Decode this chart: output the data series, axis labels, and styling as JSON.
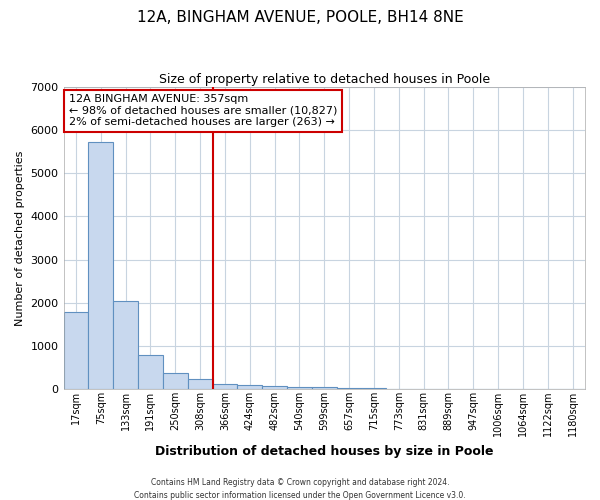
{
  "title1": "12A, BINGHAM AVENUE, POOLE, BH14 8NE",
  "title2": "Size of property relative to detached houses in Poole",
  "xlabel": "Distribution of detached houses by size in Poole",
  "ylabel": "Number of detached properties",
  "categories": [
    "17sqm",
    "75sqm",
    "133sqm",
    "191sqm",
    "250sqm",
    "308sqm",
    "366sqm",
    "424sqm",
    "482sqm",
    "540sqm",
    "599sqm",
    "657sqm",
    "715sqm",
    "773sqm",
    "831sqm",
    "889sqm",
    "947sqm",
    "1006sqm",
    "1064sqm",
    "1122sqm",
    "1180sqm"
  ],
  "values": [
    1790,
    5720,
    2050,
    800,
    370,
    240,
    130,
    100,
    75,
    55,
    45,
    35,
    30,
    0,
    0,
    0,
    0,
    0,
    0,
    0,
    0
  ],
  "bar_color": "#c8d8ee",
  "bar_edge_color": "#6090c0",
  "vline_x_index": 6,
  "vline_color": "#cc0000",
  "annotation_title": "12A BINGHAM AVENUE: 357sqm",
  "annotation_line2": "← 98% of detached houses are smaller (10,827)",
  "annotation_line3": "2% of semi-detached houses are larger (263) →",
  "annotation_box_color": "#ffffff",
  "annotation_box_edge": "#cc0000",
  "ylim": [
    0,
    7000
  ],
  "yticks": [
    0,
    1000,
    2000,
    3000,
    4000,
    5000,
    6000,
    7000
  ],
  "footer1": "Contains HM Land Registry data © Crown copyright and database right 2024.",
  "footer2": "Contains public sector information licensed under the Open Government Licence v3.0.",
  "bg_color": "#ffffff",
  "grid_color": "#c8d4e0"
}
